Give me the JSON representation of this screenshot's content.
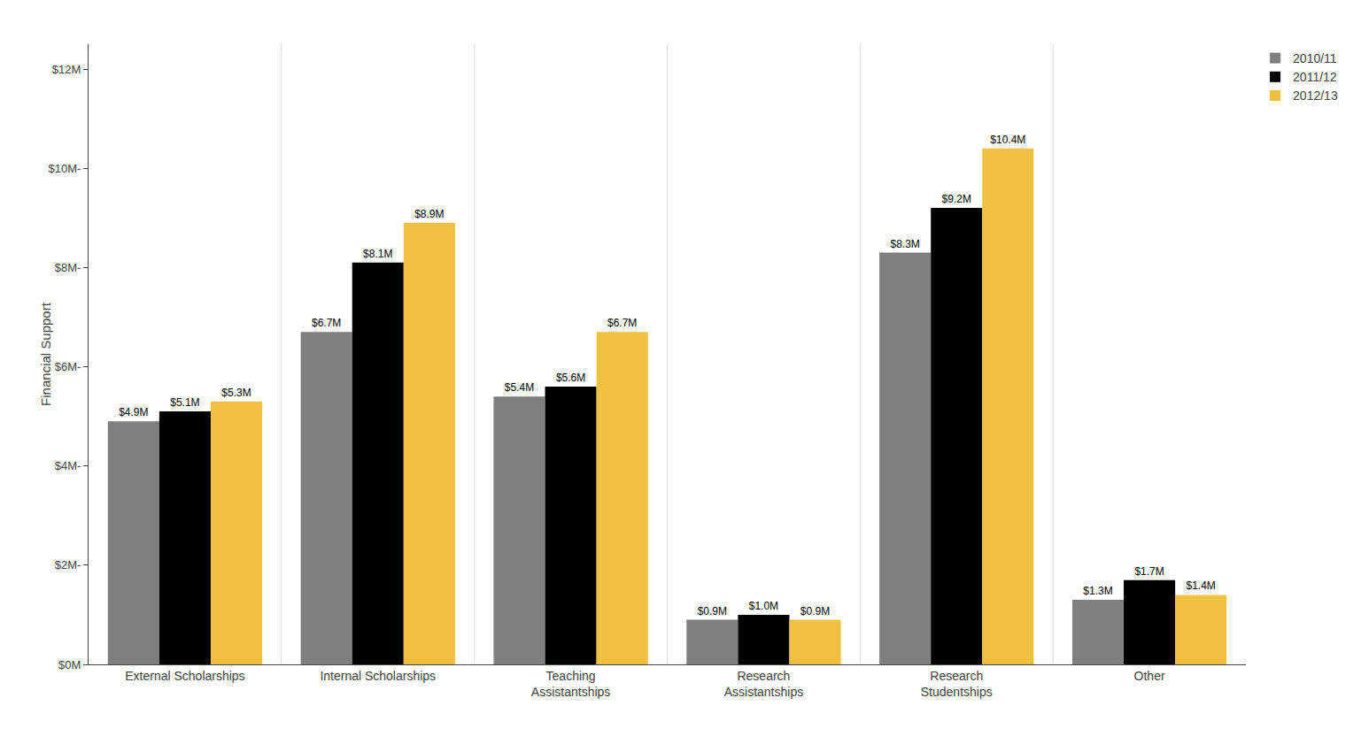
{
  "chart_data": {
    "type": "bar",
    "categories": [
      "External Scholarships",
      "Internal Scholarships",
      "Teaching\nAssistantships",
      "Research\nAssistantships",
      "Research\nStudentships",
      "Other"
    ],
    "series": [
      {
        "name": "2010/11",
        "color": "#7F7F7F",
        "values": [
          4.9,
          6.7,
          5.4,
          0.9,
          8.3,
          1.3
        ],
        "value_labels": [
          "$4.9M",
          "$6.7M",
          "$5.4M",
          "$0.9M",
          "$8.3M",
          "$1.3M"
        ]
      },
      {
        "name": "2011/12",
        "color": "#000000",
        "values": [
          5.1,
          8.1,
          5.6,
          1.0,
          9.2,
          1.7
        ],
        "value_labels": [
          "$5.1M",
          "$8.1M",
          "$5.6M",
          "$1.0M",
          "$9.2M",
          "$1.7M"
        ]
      },
      {
        "name": "2012/13",
        "color": "#F0C040",
        "values": [
          5.3,
          8.9,
          6.7,
          0.9,
          10.4,
          1.4
        ],
        "value_labels": [
          "$5.3M",
          "$8.9M",
          "$6.7M",
          "$0.9M",
          "$10.4M",
          "$1.4M"
        ]
      }
    ],
    "y_label": "Financial Support",
    "ylim": [
      0,
      12.5
    ],
    "yticks": [
      {
        "value": 0,
        "label": "$0M"
      },
      {
        "value": 2,
        "label": "$2M-"
      },
      {
        "value": 4,
        "label": "$4M-"
      },
      {
        "value": 6,
        "label": "$6M-"
      },
      {
        "value": 8,
        "label": "$8M-"
      },
      {
        "value": 10,
        "label": "$10M-"
      },
      {
        "value": 12,
        "label": "$12M"
      }
    ],
    "data_labels": true,
    "legend": "upper right",
    "grid": false
  }
}
